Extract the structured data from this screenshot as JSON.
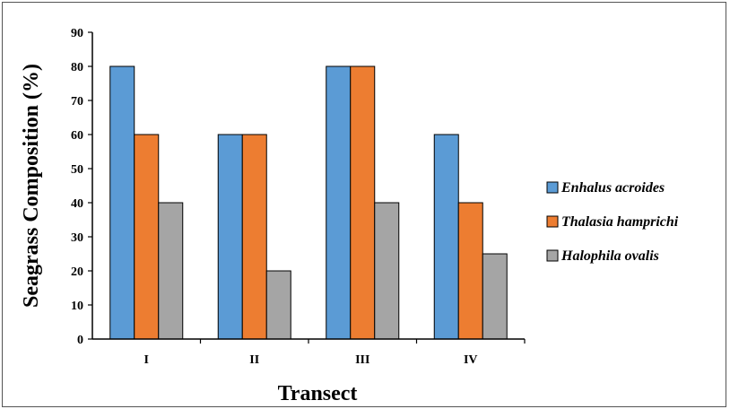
{
  "chart_data": {
    "type": "bar",
    "title": "",
    "xlabel": "Transect",
    "ylabel": "Seagrass Composition (%)",
    "categories": [
      "I",
      "II",
      "III",
      "IV"
    ],
    "ylim": [
      0,
      90
    ],
    "yticks": [
      0,
      10,
      20,
      30,
      40,
      50,
      60,
      70,
      80,
      90
    ],
    "grid": false,
    "legend_position": "right",
    "series": [
      {
        "name": "Enhalus acroides",
        "color": "#5b9bd5",
        "values": [
          80,
          60,
          80,
          60
        ]
      },
      {
        "name": "Thalasia hamprichi",
        "color": "#ed7d31",
        "values": [
          60,
          60,
          80,
          40
        ]
      },
      {
        "name": "Halophila ovalis",
        "color": "#a5a5a5",
        "values": [
          40,
          20,
          40,
          25
        ]
      }
    ]
  }
}
